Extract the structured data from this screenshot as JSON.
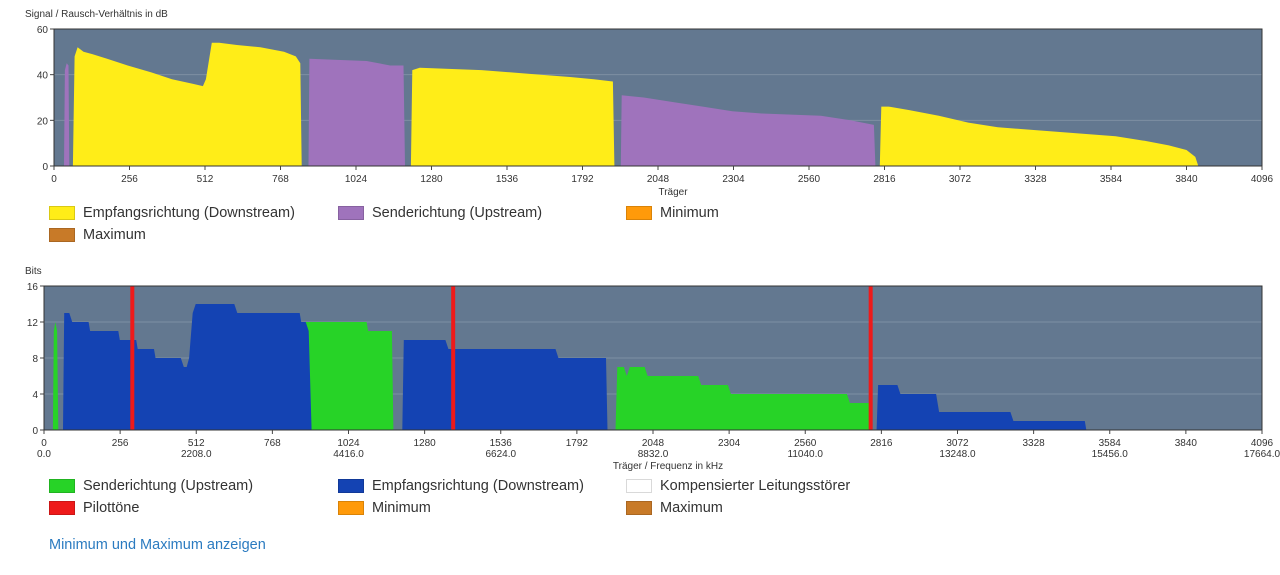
{
  "colors": {
    "plot_bg": "#637890",
    "grid": "#7d8fa3",
    "snr_downstream": "#ffed18",
    "snr_upstream": "#9f73bc",
    "minimum": "#ff9a0a",
    "maximum": "#c87a28",
    "bits_upstream": "#27d327",
    "bits_downstream": "#1443b3",
    "compensated_noise": "#ffffff",
    "pilot": "#ee1a1a"
  },
  "chart_data": [
    {
      "type": "area",
      "title": "",
      "ylabel": "Signal / Rausch-Verhältnis in dB",
      "xlabel": "Träger",
      "xlim": [
        0,
        4096
      ],
      "ylim": [
        0,
        60
      ],
      "x_ticks": [
        0,
        256,
        512,
        768,
        1024,
        1280,
        1536,
        1792,
        2048,
        2304,
        2560,
        2816,
        3072,
        3328,
        3584,
        3840,
        4096
      ],
      "y_ticks": [
        0,
        20,
        40,
        60
      ],
      "grid": true,
      "series": [
        {
          "name": "Empfangsrichtung (Downstream)",
          "color_key": "snr_downstream",
          "segments": [
            [
              [
                64,
                0
              ],
              [
                70,
                48
              ],
              [
                80,
                52
              ],
              [
                100,
                50
              ],
              [
                130,
                49
              ],
              [
                180,
                47
              ],
              [
                250,
                44
              ],
              [
                330,
                41
              ],
              [
                400,
                38
              ],
              [
                470,
                36
              ],
              [
                505,
                35
              ],
              [
                515,
                38
              ],
              [
                535,
                54
              ],
              [
                560,
                54
              ],
              [
                620,
                53
              ],
              [
                700,
                52
              ],
              [
                780,
                50
              ],
              [
                820,
                48
              ],
              [
                835,
                45
              ],
              [
                840,
                0
              ]
            ],
            [
              [
                1210,
                0
              ],
              [
                1215,
                42
              ],
              [
                1240,
                43
              ],
              [
                1350,
                42.5
              ],
              [
                1450,
                42
              ],
              [
                1550,
                41
              ],
              [
                1650,
                40
              ],
              [
                1750,
                39
              ],
              [
                1830,
                38
              ],
              [
                1895,
                37
              ],
              [
                1900,
                0
              ]
            ],
            [
              [
                2800,
                0
              ],
              [
                2805,
                26
              ],
              [
                2830,
                26
              ],
              [
                2900,
                24.5
              ],
              [
                3000,
                22
              ],
              [
                3100,
                19
              ],
              [
                3200,
                17
              ],
              [
                3300,
                16
              ],
              [
                3400,
                15
              ],
              [
                3500,
                14
              ],
              [
                3600,
                13
              ],
              [
                3700,
                11
              ],
              [
                3780,
                9
              ],
              [
                3840,
                7
              ],
              [
                3870,
                4
              ],
              [
                3880,
                0
              ]
            ]
          ]
        },
        {
          "name": "Senderichtung (Upstream)",
          "color_key": "snr_upstream",
          "segments": [
            [
              [
                34,
                0
              ],
              [
                37,
                42
              ],
              [
                43,
                45
              ],
              [
                49,
                44
              ],
              [
                52,
                0
              ]
            ],
            [
              [
                863,
                0
              ],
              [
                866,
                47
              ],
              [
                950,
                46.5
              ],
              [
                1060,
                46
              ],
              [
                1140,
                44
              ],
              [
                1185,
                44
              ],
              [
                1190,
                0
              ]
            ],
            [
              [
                1922,
                0
              ],
              [
                1925,
                31
              ],
              [
                2000,
                30
              ],
              [
                2100,
                28
              ],
              [
                2200,
                26
              ],
              [
                2300,
                24
              ],
              [
                2400,
                23
              ],
              [
                2500,
                22.5
              ],
              [
                2600,
                22
              ],
              [
                2700,
                20
              ],
              [
                2780,
                18
              ],
              [
                2785,
                0
              ]
            ]
          ]
        },
        {
          "name": "Minimum",
          "color_key": "minimum",
          "segments": []
        },
        {
          "name": "Maximum",
          "color_key": "maximum",
          "segments": []
        }
      ]
    },
    {
      "type": "area",
      "title": "",
      "ylabel": "Bits",
      "xlabel": "Träger / Frequenz in kHz",
      "xlim": [
        0,
        4096
      ],
      "ylim": [
        0,
        16
      ],
      "x_ticks": [
        0,
        256,
        512,
        768,
        1024,
        1280,
        1536,
        1792,
        2048,
        2304,
        2560,
        2816,
        3072,
        3328,
        3584,
        3840,
        4096
      ],
      "x_freq_labels": [
        {
          "x": 0,
          "label": "0.0"
        },
        {
          "x": 512,
          "label": "2208.0"
        },
        {
          "x": 1024,
          "label": "4416.0"
        },
        {
          "x": 1536,
          "label": "6624.0"
        },
        {
          "x": 2048,
          "label": "8832.0"
        },
        {
          "x": 2560,
          "label": "11040.0"
        },
        {
          "x": 3072,
          "label": "13248.0"
        },
        {
          "x": 3584,
          "label": "15456.0"
        },
        {
          "x": 4096,
          "label": "17664.0"
        }
      ],
      "y_ticks": [
        0,
        4,
        8,
        12,
        16
      ],
      "grid": true,
      "series": [
        {
          "name": "Senderichtung (Upstream)",
          "color_key": "bits_upstream",
          "segments": [
            [
              [
                30,
                0
              ],
              [
                33,
                11
              ],
              [
                38,
                12
              ],
              [
                44,
                11
              ],
              [
                48,
                0
              ]
            ],
            [
              [
                863,
                0
              ],
              [
                866,
                12
              ],
              [
                1085,
                12
              ],
              [
                1090,
                11
              ],
              [
                1170,
                11
              ],
              [
                1175,
                0
              ]
            ],
            [
              [
                1922,
                0
              ],
              [
                1928,
                7
              ],
              [
                1950,
                7
              ],
              [
                1960,
                6
              ],
              [
                1970,
                7
              ],
              [
                2020,
                7
              ],
              [
                2030,
                6
              ],
              [
                2200,
                6
              ],
              [
                2210,
                5
              ],
              [
                2300,
                5
              ],
              [
                2310,
                4
              ],
              [
                2700,
                4
              ],
              [
                2710,
                3
              ],
              [
                2780,
                3
              ],
              [
                2785,
                0
              ]
            ]
          ]
        },
        {
          "name": "Empfangsrichtung (Downstream)",
          "color_key": "bits_downstream",
          "segments": [
            [
              [
                64,
                0
              ],
              [
                68,
                13
              ],
              [
                85,
                13
              ],
              [
                95,
                12
              ],
              [
                150,
                12
              ],
              [
                155,
                11
              ],
              [
                250,
                11
              ],
              [
                255,
                10
              ],
              [
                310,
                10
              ],
              [
                315,
                9
              ],
              [
                370,
                9
              ],
              [
                375,
                8
              ],
              [
                460,
                8
              ],
              [
                470,
                7
              ],
              [
                480,
                7
              ],
              [
                488,
                8
              ],
              [
                500,
                13
              ],
              [
                510,
                14
              ],
              [
                640,
                14
              ],
              [
                650,
                13
              ],
              [
                860,
                13
              ],
              [
                865,
                12
              ],
              [
                880,
                12
              ],
              [
                890,
                11
              ],
              [
                900,
                0
              ]
            ],
            [
              [
                1205,
                0
              ],
              [
                1210,
                10
              ],
              [
                1350,
                10
              ],
              [
                1360,
                9
              ],
              [
                1720,
                9
              ],
              [
                1730,
                8
              ],
              [
                1890,
                8
              ],
              [
                1895,
                0
              ]
            ],
            [
              [
                2800,
                0
              ],
              [
                2805,
                5
              ],
              [
                2870,
                5
              ],
              [
                2880,
                4
              ],
              [
                3000,
                4
              ],
              [
                3010,
                2
              ],
              [
                3250,
                2
              ],
              [
                3260,
                1
              ],
              [
                3500,
                1
              ],
              [
                3505,
                0
              ]
            ]
          ]
        },
        {
          "name": "Kompensierter Leitungsstörer",
          "color_key": "compensated_noise",
          "segments": []
        },
        {
          "name": "Pilottöne",
          "color_key": "pilot",
          "lines_x": [
            297,
            1376,
            2780
          ]
        },
        {
          "name": "Minimum",
          "color_key": "minimum",
          "segments": []
        },
        {
          "name": "Maximum",
          "color_key": "maximum",
          "segments": []
        }
      ]
    }
  ],
  "legend1": [
    {
      "label": "Empfangsrichtung (Downstream)",
      "color_key": "snr_downstream"
    },
    {
      "label": "Senderichtung (Upstream)",
      "color_key": "snr_upstream"
    },
    {
      "label": "Minimum",
      "color_key": "minimum"
    },
    {
      "label": "Maximum",
      "color_key": "maximum"
    }
  ],
  "legend2": [
    {
      "label": "Senderichtung (Upstream)",
      "color_key": "bits_upstream"
    },
    {
      "label": "Empfangsrichtung (Downstream)",
      "color_key": "bits_downstream"
    },
    {
      "label": "Kompensierter Leitungsstörer",
      "color_key": "compensated_noise"
    },
    {
      "label": "Pilottöne",
      "color_key": "pilot"
    },
    {
      "label": "Minimum",
      "color_key": "minimum"
    },
    {
      "label": "Maximum",
      "color_key": "maximum"
    }
  ],
  "toggle_link": "Minimum und Maximum anzeigen"
}
